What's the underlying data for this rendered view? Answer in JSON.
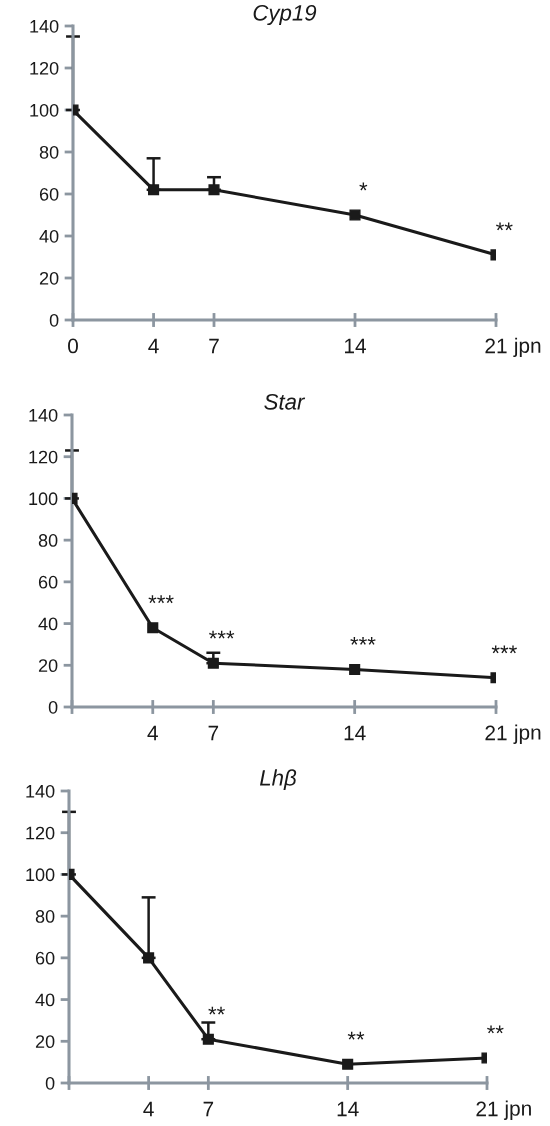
{
  "chart_data": [
    {
      "type": "line",
      "title": "Cyp19",
      "xlabel": "jpn",
      "x": [
        0,
        4,
        7,
        14,
        21
      ],
      "xlim": [
        0,
        21
      ],
      "xticks": [
        0,
        4,
        7,
        14,
        21
      ],
      "ylim": [
        0,
        140
      ],
      "yticks": [
        0,
        20,
        40,
        60,
        80,
        100,
        120,
        140
      ],
      "grid": false,
      "marker": "square",
      "line_style": "solid",
      "series": [
        {
          "color": "#1a1a1a",
          "values": [
            100,
            62,
            62,
            50,
            31
          ],
          "errors": [
            [
              100,
              135
            ],
            [
              62,
              77
            ],
            [
              62,
              68
            ],
            null,
            null
          ]
        }
      ],
      "annotations": [
        {
          "text": "*",
          "x": 14,
          "y": 50
        },
        {
          "text": "**",
          "x": 21,
          "y": 31
        }
      ]
    },
    {
      "type": "line",
      "title": "Star",
      "xlabel": "jpn",
      "x": [
        0,
        4,
        7,
        14,
        21
      ],
      "xlim": [
        0,
        21
      ],
      "xticks": [
        {
          "value": 0,
          "label": null
        },
        4,
        7,
        14,
        21
      ],
      "ylim": [
        0,
        140
      ],
      "yticks": [
        0,
        20,
        40,
        60,
        80,
        100,
        120,
        140
      ],
      "grid": false,
      "marker": "square",
      "line_style": "solid",
      "series": [
        {
          "color": "#1a1a1a",
          "values": [
            100,
            38,
            21,
            18,
            14
          ],
          "errors": [
            [
              100,
              123
            ],
            null,
            [
              21,
              26
            ],
            null,
            null
          ]
        }
      ],
      "annotations": [
        {
          "text": "***",
          "x": 4,
          "y": 38
        },
        {
          "text": "***",
          "x": 7,
          "y": 21
        },
        {
          "text": "***",
          "x": 14,
          "y": 18
        },
        {
          "text": "***",
          "x": 21,
          "y": 14
        }
      ]
    },
    {
      "type": "line",
      "title": "Lhβ",
      "xlabel": "jpn",
      "x": [
        0,
        4,
        7,
        14,
        21
      ],
      "xlim": [
        0,
        21
      ],
      "xticks": [
        {
          "value": 0,
          "label": null
        },
        4,
        7,
        14,
        21
      ],
      "ylim": [
        0,
        140
      ],
      "yticks": [
        0,
        20,
        40,
        60,
        80,
        100,
        120,
        140
      ],
      "grid": false,
      "marker": "square",
      "line_style": "solid",
      "series": [
        {
          "color": "#1a1a1a",
          "values": [
            100,
            60,
            21,
            9,
            12
          ],
          "errors": [
            [
              100,
              130
            ],
            [
              60,
              89
            ],
            [
              21,
              29
            ],
            null,
            null
          ]
        }
      ],
      "annotations": [
        {
          "text": "**",
          "x": 7,
          "y": 21
        },
        {
          "text": "**",
          "x": 14,
          "y": 9
        },
        {
          "text": "**",
          "x": 21,
          "y": 12
        }
      ]
    }
  ]
}
